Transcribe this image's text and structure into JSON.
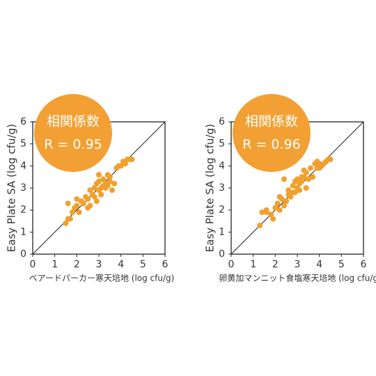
{
  "chart_data": [
    {
      "type": "scatter",
      "x_label": "ベアードパーカー寒天培地 (log cfu/g)",
      "y_label": "Easy Plate SA (log cfu/g)",
      "annotation": {
        "title": "相関係数",
        "text": "R = 0.95",
        "color": "#f2a033"
      },
      "xlim": [
        0,
        6
      ],
      "ylim": [
        0,
        6
      ],
      "xticks": [
        0,
        1,
        2,
        3,
        4,
        5,
        6
      ],
      "yticks": [
        0,
        1,
        2,
        3,
        4,
        5,
        6
      ],
      "color": "#f0a02c",
      "x": [
        1.5,
        1.6,
        1.7,
        1.8,
        1.9,
        2.0,
        2.1,
        2.2,
        2.3,
        2.4,
        2.5,
        2.5,
        2.6,
        2.7,
        2.8,
        2.8,
        2.9,
        3.0,
        3.0,
        3.1,
        3.1,
        3.2,
        3.2,
        3.3,
        3.3,
        3.4,
        3.5,
        3.5,
        3.6,
        3.7,
        3.8,
        3.9,
        4.0,
        4.1,
        4.2,
        4.3,
        4.4,
        4.5,
        2.0,
        2.6,
        3.0,
        3.4,
        1.6,
        2.9
      ],
      "values": [
        1.4,
        2.3,
        1.6,
        1.9,
        2.1,
        2.2,
        1.9,
        2.4,
        2.3,
        2.6,
        2.5,
        2.1,
        2.9,
        2.7,
        3.0,
        2.6,
        3.2,
        2.9,
        3.3,
        3.0,
        2.7,
        3.1,
        3.4,
        3.2,
        3.0,
        3.6,
        3.5,
        3.3,
        2.9,
        3.2,
        3.9,
        4.0,
        4.0,
        4.2,
        4.1,
        4.3,
        4.3,
        4.3,
        2.5,
        2.2,
        3.6,
        3.1,
        1.6,
        2.4
      ]
    },
    {
      "type": "scatter",
      "x_label": "卵黄加マンニット食塩寒天培地 (log cfu/g)",
      "y_label": "Easy Plate SA (log cfu/g)",
      "annotation": {
        "title": "相関係数",
        "text": "R = 0.96",
        "color": "#f2a033"
      },
      "xlim": [
        0,
        6
      ],
      "ylim": [
        0,
        6
      ],
      "xticks": [
        0,
        1,
        2,
        3,
        4,
        5,
        6
      ],
      "yticks": [
        0,
        1,
        2,
        3,
        4,
        5,
        6
      ],
      "color": "#f0a02c",
      "x": [
        1.3,
        1.4,
        1.6,
        1.8,
        1.9,
        2.0,
        2.1,
        2.2,
        2.3,
        2.4,
        2.5,
        2.6,
        2.6,
        2.7,
        2.8,
        2.9,
        2.9,
        3.0,
        3.0,
        3.1,
        3.1,
        3.2,
        3.2,
        3.3,
        3.4,
        3.4,
        3.5,
        3.6,
        3.7,
        3.8,
        3.9,
        4.0,
        4.0,
        4.1,
        4.2,
        4.3,
        4.4,
        4.5,
        1.6,
        2.2,
        2.8,
        3.3,
        3.9,
        2.4
      ],
      "values": [
        1.3,
        1.9,
        1.9,
        1.8,
        1.6,
        2.1,
        2.3,
        2.0,
        2.5,
        2.2,
        2.4,
        2.7,
        2.9,
        2.6,
        3.1,
        2.8,
        3.3,
        3.0,
        3.4,
        3.2,
        2.9,
        3.5,
        3.3,
        3.5,
        3.0,
        3.7,
        3.4,
        3.9,
        3.5,
        4.1,
        3.9,
        4.1,
        3.9,
        4.0,
        4.1,
        4.2,
        4.3,
        4.3,
        2.0,
        2.6,
        2.8,
        3.8,
        4.2,
        3.4
      ]
    }
  ]
}
